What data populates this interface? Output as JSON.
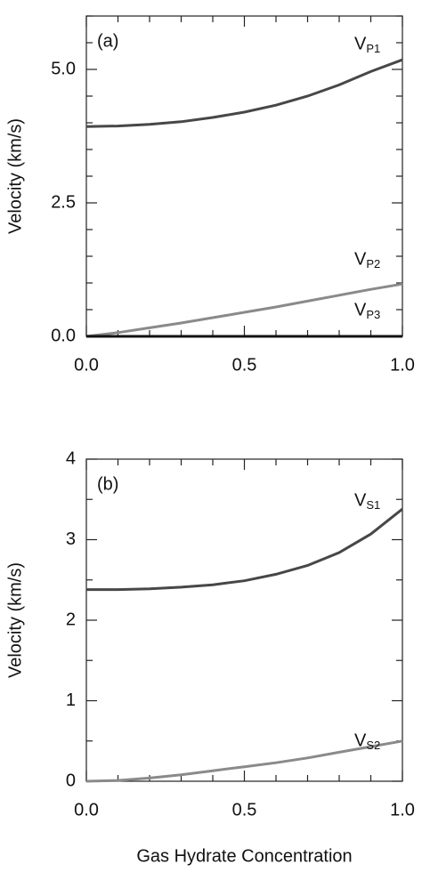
{
  "chart_data": [
    {
      "type": "line",
      "title": "(a)",
      "y_label": "Velocity (km/s)",
      "x": [
        0,
        0.1,
        0.2,
        0.3,
        0.4,
        0.5,
        0.6,
        0.7,
        0.8,
        0.9,
        1.0
      ],
      "series": [
        {
          "name": "VP1",
          "color": "#474747",
          "values": [
            3.93,
            3.94,
            3.97,
            4.02,
            4.1,
            4.2,
            4.33,
            4.5,
            4.71,
            4.96,
            5.18
          ]
        },
        {
          "name": "VP2",
          "color": "#8a8a8a",
          "values": [
            0,
            0.07,
            0.16,
            0.25,
            0.35,
            0.45,
            0.55,
            0.66,
            0.77,
            0.88,
            0.98
          ]
        },
        {
          "name": "VP3",
          "color": "#111111",
          "values": [
            0,
            0,
            0,
            0,
            0,
            0,
            0,
            0,
            0,
            0,
            0
          ]
        }
      ],
      "xlim": [
        0,
        1
      ],
      "ylim": [
        0,
        6
      ],
      "xticks": [
        {
          "value": 0,
          "label": "0.0"
        },
        0.5,
        {
          "value": 1,
          "label": "1.0"
        }
      ],
      "yticks": [
        {
          "value": 0,
          "label": "0.0"
        },
        2.5,
        {
          "value": 5,
          "label": "5.0"
        }
      ],
      "xminor": [
        0.1,
        0.2,
        0.3,
        0.4,
        0.6,
        0.7,
        0.8,
        0.9
      ],
      "yminor": [
        0.5,
        1,
        1.5,
        2,
        3,
        3.5,
        4,
        4.5,
        5.5,
        6
      ]
    },
    {
      "type": "line",
      "title": "(b)",
      "y_label": "Velocity (km/s)",
      "x_label": "Gas Hydrate Concentration",
      "x": [
        0,
        0.1,
        0.2,
        0.3,
        0.4,
        0.5,
        0.6,
        0.7,
        0.8,
        0.9,
        1.0
      ],
      "series": [
        {
          "name": "VS1",
          "color": "#474747",
          "values": [
            2.38,
            2.38,
            2.39,
            2.41,
            2.44,
            2.49,
            2.57,
            2.68,
            2.84,
            3.07,
            3.38
          ]
        },
        {
          "name": "VS2",
          "color": "#8a8a8a",
          "values": [
            0,
            0.01,
            0.04,
            0.08,
            0.13,
            0.18,
            0.23,
            0.29,
            0.36,
            0.43,
            0.5
          ]
        }
      ],
      "xlim": [
        0,
        1
      ],
      "ylim": [
        0,
        4
      ],
      "xticks": [
        {
          "value": 0,
          "label": "0.0"
        },
        0.5,
        {
          "value": 1,
          "label": "1.0"
        }
      ],
      "yticks": [
        0,
        1,
        2,
        3,
        4
      ],
      "xminor": [
        0.1,
        0.2,
        0.3,
        0.4,
        0.6,
        0.7,
        0.8,
        0.9
      ],
      "yminor": [
        0.5,
        1.5,
        2.5,
        3.5
      ]
    }
  ]
}
